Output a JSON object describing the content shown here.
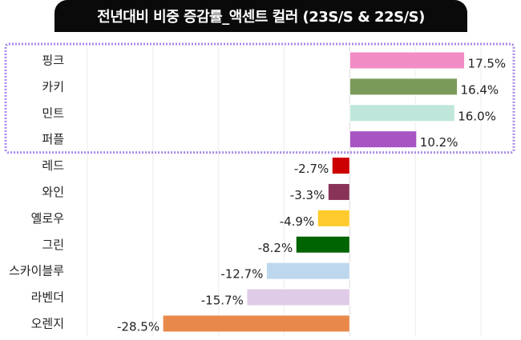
{
  "chart_data": {
    "type": "bar",
    "orientation": "horizontal",
    "title": "전년대비 비중 증감률_액센트 컬러 (23S/S & 22S/S)",
    "xlabel": "",
    "ylabel": "",
    "xlim": [
      -40,
      20
    ],
    "grid": true,
    "categories": [
      "핑크",
      "카키",
      "민트",
      "퍼플",
      "레드",
      "와인",
      "옐로우",
      "그린",
      "스카이블루",
      "라벤더",
      "오렌지"
    ],
    "values": [
      17.5,
      16.4,
      16.0,
      10.2,
      -2.7,
      -3.3,
      -4.9,
      -8.2,
      -12.7,
      -15.7,
      -28.5
    ],
    "data_labels": [
      "17.5%",
      "16.4%",
      "16.0%",
      "10.2%",
      "-2.7%",
      "-3.3%",
      "-4.9%",
      "-8.2%",
      "-12.7%",
      "-15.7%",
      "-28.5%"
    ],
    "colors": [
      "#f28cc4",
      "#7a9a5a",
      "#bfe6da",
      "#a855c4",
      "#cc0000",
      "#8a3358",
      "#ffca2c",
      "#006400",
      "#bdd7ee",
      "#dfcbe8",
      "#e8894a"
    ],
    "highlight_group": [
      "핑크",
      "카키",
      "민트",
      "퍼플"
    ],
    "highlight_color": "#a78bea"
  }
}
